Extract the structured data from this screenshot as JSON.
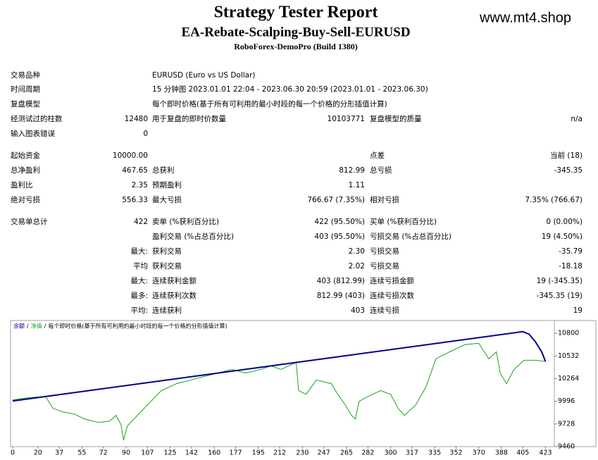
{
  "header": {
    "title": "Strategy Tester Report",
    "subtitle": "EA-Rebate-Scalping-Buy-Sell-EURUSD",
    "build": "RoboForex-DemoPro (Build 1380)",
    "site": "www.mt4.shop"
  },
  "table": {
    "rows": [
      [
        "交易品种",
        null,
        "EURUSD (Euro vs US Dollar)"
      ],
      [
        "时间周期",
        null,
        "15 分钟图 2023.01.01 22:04 - 2023.06.30 20:59 (2023.01.01 - 2023.06.30)"
      ],
      [
        "复盘模型",
        null,
        "每个即时价格(基于所有可利用的最小时段的每一个价格的分形插值计算)"
      ],
      [
        "经测试过的柱数",
        "12480",
        "用于复盘的即时价数量",
        "10103771",
        "复盘模型的质量",
        "n/a"
      ],
      [
        "输入图表错误",
        "0"
      ],
      [
        "起始资金",
        "10000.00",
        null,
        null,
        "点差",
        "当前 (18)"
      ],
      [
        "总净盈利",
        "467.65",
        "总获利",
        "812.99",
        "总亏损",
        "-345.35"
      ],
      [
        "盈利比",
        "2.35",
        "预期盈利",
        "1.11"
      ],
      [
        "绝对亏损",
        "556.33",
        "最大亏损",
        "766.67 (7.35%)",
        "相对亏损",
        "7.35% (766.67)"
      ],
      [
        "交易单总计",
        "422",
        "卖单 (%获利百分比)",
        "422 (95.50%)",
        "买单 (%获利百分比)",
        "0 (0.00%)"
      ],
      [
        null,
        null,
        "盈利交易 (%占总百分比)",
        "403 (95.50%)",
        "亏损交易 (%占总百分比)",
        "19 (4.50%)"
      ],
      [
        null,
        "最大:",
        "获利交易",
        "2.30",
        "亏损交易",
        "-35.79"
      ],
      [
        null,
        "平均",
        "获利交易",
        "2.02",
        "亏损交易",
        "-18.18"
      ],
      [
        null,
        "最大:",
        "连续获利金额",
        "403 (812.99)",
        "连续亏损金额",
        "19 (-345.35)"
      ],
      [
        null,
        "最多:",
        "连续获利次数",
        "812.99 (403)",
        "连续亏损次数",
        "-345.35 (19)"
      ],
      [
        null,
        "平均:",
        "连续获利",
        "403",
        "连续亏损",
        "19"
      ]
    ]
  },
  "chart_data": {
    "type": "line",
    "legend_separator": "/",
    "legend_note": "每个即时价格(基于所有可利用的最小时段的每一个价格的分形插值计算)",
    "xlim": [
      0,
      430
    ],
    "ylim": [
      9460,
      10935
    ],
    "xticks": [
      0,
      20,
      37,
      55,
      72,
      90,
      107,
      125,
      142,
      160,
      177,
      195,
      212,
      230,
      247,
      265,
      282,
      300,
      317,
      335,
      352,
      370,
      388,
      405,
      423
    ],
    "yticks": [
      9460,
      9728,
      9996,
      10264,
      10532,
      10800
    ],
    "series": [
      {
        "name": "余额",
        "color": "#00008b",
        "x": [
          0,
          405,
          410,
          415,
          420,
          423
        ],
        "values": [
          10000,
          10820,
          10790,
          10700,
          10580,
          10467
        ]
      },
      {
        "name": "净值",
        "color": "#1aa01a",
        "x": [
          0,
          12,
          26,
          32,
          40,
          49,
          57,
          68,
          77,
          82,
          86,
          88,
          91,
          99,
          107,
          118,
          130,
          141,
          152,
          163,
          174,
          185,
          197,
          205,
          213,
          225,
          227,
          233,
          241,
          253,
          258,
          264,
          269,
          272,
          275,
          280,
          292,
          300,
          306,
          311,
          320,
          328,
          336,
          347,
          359,
          370,
          378,
          384,
          387,
          392,
          398,
          406,
          415,
          423
        ],
        "values": [
          10013,
          10038,
          10055,
          9912,
          9870,
          9845,
          9787,
          9745,
          9762,
          9829,
          9720,
          9535,
          9703,
          9829,
          9954,
          10122,
          10205,
          10247,
          10289,
          10331,
          10373,
          10331,
          10373,
          10415,
          10373,
          10457,
          10122,
          10080,
          10247,
          10205,
          10080,
          9954,
          9829,
          9787,
          9996,
          10038,
          10122,
          10080,
          9912,
          9829,
          9954,
          10163,
          10499,
          10582,
          10666,
          10683,
          10499,
          10582,
          10331,
          10205,
          10373,
          10482,
          10482,
          10467
        ]
      }
    ]
  }
}
